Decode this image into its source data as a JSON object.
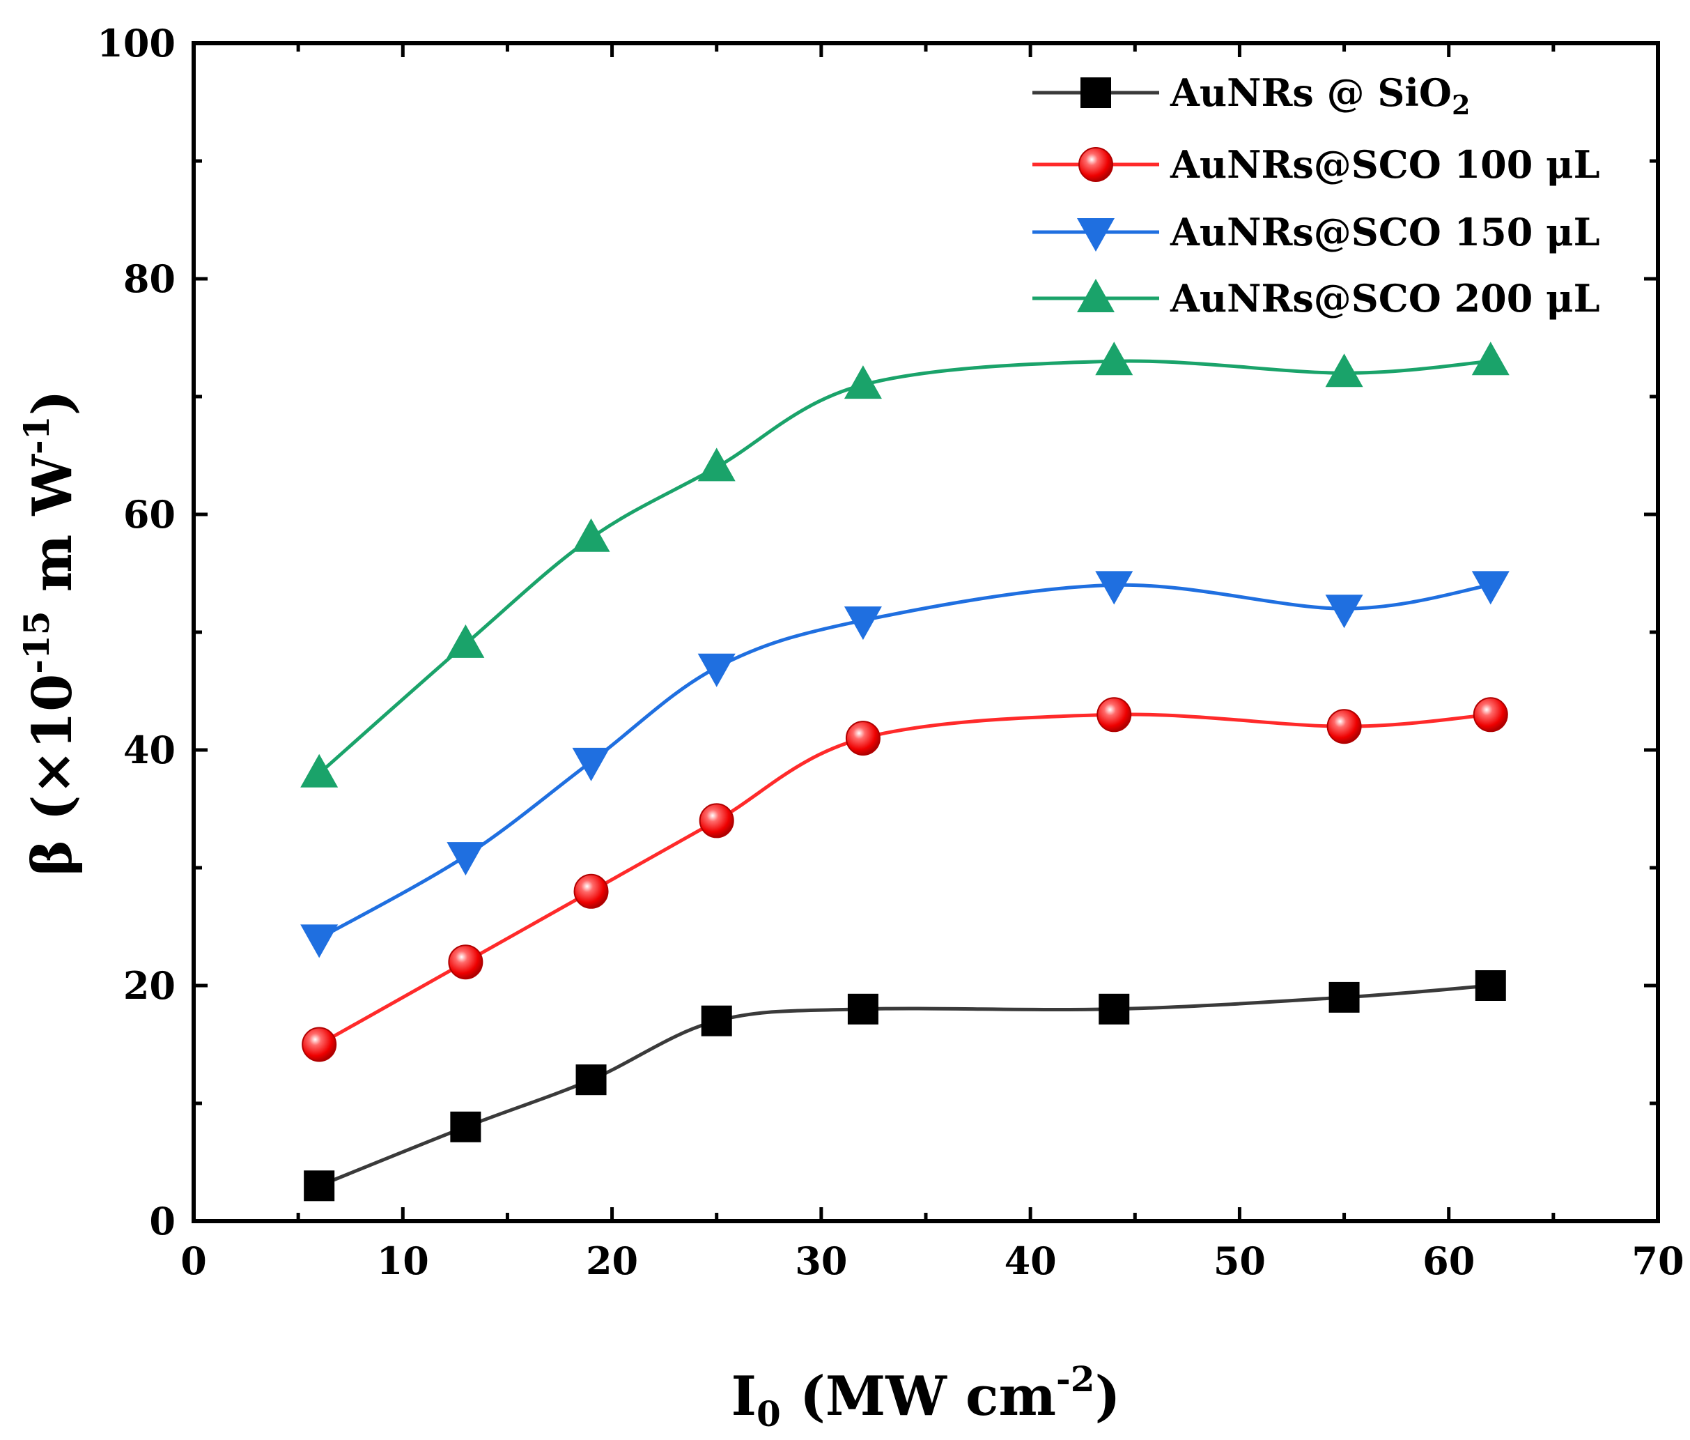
{
  "chart_data": {
    "type": "line",
    "title": "",
    "xlabel": {
      "base": "I",
      "sub": "0",
      "rest": " (MW cm",
      "sup": "-2",
      "end": ")"
    },
    "ylabel": {
      "pre": "β (×10",
      "sup": "-15",
      "mid": " m W",
      "sup2": "-1",
      "end": ")"
    },
    "xlim": [
      0,
      70
    ],
    "ylim": [
      0,
      100
    ],
    "x_ticks": [
      0,
      10,
      20,
      30,
      40,
      50,
      60,
      70
    ],
    "y_ticks": [
      0,
      20,
      40,
      60,
      80,
      100
    ],
    "x": [
      6,
      13,
      19,
      25,
      32,
      44,
      55,
      62
    ],
    "grid": false,
    "legend_position": "top-right",
    "series": [
      {
        "name": "AuNRs @ SiO",
        "name_sub": "2",
        "color": "#3a3a3a",
        "marker": "square",
        "values": [
          3,
          8,
          12,
          17,
          18,
          18,
          19,
          20
        ]
      },
      {
        "name": "AuNRs@SCO 100 μL",
        "name_sub": "",
        "color": "#ff2a2a",
        "marker": "circle",
        "values": [
          15,
          22,
          28,
          34,
          41,
          43,
          42,
          43
        ]
      },
      {
        "name": "AuNRs@SCO 150 μL",
        "name_sub": "",
        "color": "#1f6fe0",
        "marker": "triangle-down",
        "values": [
          24,
          31,
          39,
          47,
          51,
          54,
          52,
          54
        ]
      },
      {
        "name": "AuNRs@SCO 200 μL",
        "name_sub": "",
        "color": "#1aa36a",
        "marker": "triangle-up",
        "values": [
          38,
          49,
          58,
          64,
          71,
          73,
          72,
          73
        ]
      }
    ]
  }
}
